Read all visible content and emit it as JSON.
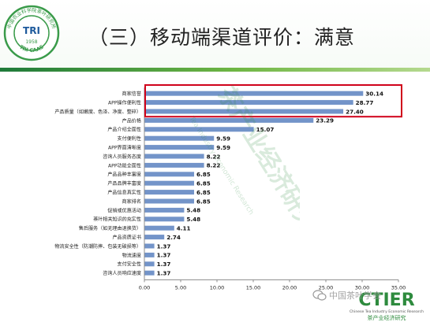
{
  "slide": {
    "title": "（三）移动端渠道评价：满意",
    "logo_ring_text": "中国农业科学院茶叶研究所",
    "logo_center_text": "TRI",
    "logo_year": "1958",
    "logo_bottom_text": "TRI CAAS",
    "watermark_text": "茶产业经济研究",
    "watermark_en": "Tea Industry Economic Research",
    "footer_logo_text": "CTIER",
    "footer_logo_en": "Chinese Tea Industry Economic Research",
    "footer_logo_cn": "茶产业经济研究",
    "wechat_credit": "中国茶叶学会"
  },
  "colors": {
    "bar": "#7394c9",
    "highlight_box": "#d0021b",
    "brand_green": "#2e8b3e",
    "logo_green": "#3a9b4a",
    "title": "#222222"
  },
  "chart_data": {
    "type": "bar",
    "orientation": "horizontal",
    "categories": [
      "商家信誉",
      "APP操作便利性",
      "产品质量（如嫩度、色泽、净度、整碎）",
      "产品价格",
      "产品介绍全面性",
      "支付便利性",
      "APP界面清晰度",
      "咨询人员服务态度",
      "APP功能全面性",
      "产品品种丰富度",
      "产品品牌丰富度",
      "产品信息真实性",
      "商家排名",
      "促销或优惠活动",
      "茶叶相关知识的充实性",
      "售后服务（如无理由退换货）",
      "产品资质证书",
      "物流安全性（防潮防摔、包装无破损等）",
      "物流速度",
      "支付安全性",
      "咨询人员响应速度"
    ],
    "values": [
      30.14,
      28.77,
      27.4,
      23.29,
      15.07,
      9.59,
      9.59,
      8.22,
      8.22,
      6.85,
      6.85,
      6.85,
      6.85,
      5.48,
      5.48,
      4.11,
      2.74,
      1.37,
      1.37,
      1.37,
      1.37
    ],
    "value_labels": [
      "30.14",
      "28.77",
      "27.40",
      "23.29",
      "15.07",
      "9.59",
      "9.59",
      "8.22",
      "8.22",
      "6.85",
      "6.85",
      "6.85",
      "6.85",
      "5.48",
      "5.48",
      "4.11",
      "2.74",
      "1.37",
      "1.37",
      "1.37",
      "1.37"
    ],
    "x_ticks": [
      "0.00",
      "5.00",
      "10.00",
      "15.00",
      "20.00",
      "25.00",
      "30.00",
      "35.00"
    ],
    "xlim": [
      0,
      35
    ],
    "highlighted_categories": [
      "商家信誉",
      "APP操作便利性",
      "产品质量（如嫩度、色泽、净度、整碎）"
    ],
    "grid": false,
    "legend": "none"
  }
}
